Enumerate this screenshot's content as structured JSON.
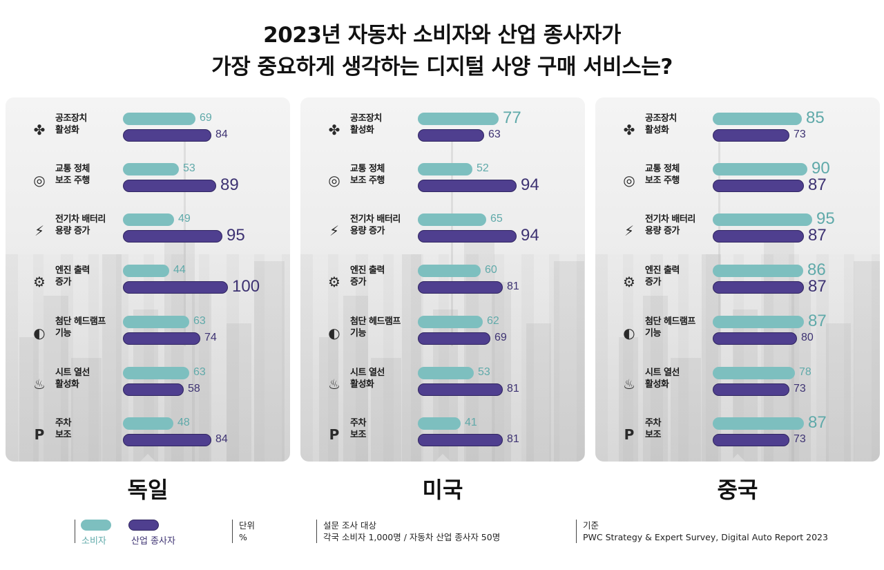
{
  "title": {
    "line1": "2023년 자동차 소비자와 산업 종사자가",
    "line2": "가장 중요하게 생각하는 디지털 사양 구매 서비스는?"
  },
  "colors": {
    "consumer": "#7dbfbf",
    "industry": "#4f3f8f"
  },
  "icons": [
    "fan-icon",
    "steering-wheel-icon",
    "battery-charging-icon",
    "engine-icon",
    "headlamp-icon",
    "heated-seat-icon",
    "parking-icon"
  ],
  "chart_data": {
    "type": "bar",
    "orientation": "horizontal",
    "categories": [
      [
        "공조장치",
        "활성화"
      ],
      [
        "교통 정체",
        "보조 주행"
      ],
      [
        "전기차 배터리",
        "용량 증가"
      ],
      [
        "엔진 출력",
        "증가"
      ],
      [
        "첨단 헤드램프",
        "기능"
      ],
      [
        "시트 열선",
        "활성화"
      ],
      [
        "주차",
        "보조"
      ]
    ],
    "unit": "%",
    "groups": [
      {
        "name": "독일",
        "series": [
          {
            "name": "소비자",
            "values": [
              69,
              53,
              49,
              44,
              63,
              63,
              48
            ]
          },
          {
            "name": "산업 종사자",
            "values": [
              84,
              89,
              95,
              100,
              74,
              58,
              84
            ]
          }
        ]
      },
      {
        "name": "미국",
        "series": [
          {
            "name": "소비자",
            "values": [
              77,
              52,
              65,
              60,
              62,
              53,
              41
            ]
          },
          {
            "name": "산업 종사자",
            "values": [
              63,
              94,
              94,
              81,
              69,
              81,
              81
            ]
          }
        ]
      },
      {
        "name": "중국",
        "series": [
          {
            "name": "소비자",
            "values": [
              85,
              90,
              95,
              86,
              87,
              78,
              87
            ]
          },
          {
            "name": "산업 종사자",
            "values": [
              73,
              87,
              87,
              87,
              80,
              73,
              73
            ]
          }
        ]
      }
    ],
    "highlight_max": true,
    "legend": "bottom-left"
  },
  "footer": {
    "legend_consumer": "소비자",
    "legend_industry": "산업 종사자",
    "unit_label": "단위",
    "unit_value": "%",
    "survey_label": "설문 조사 대상",
    "survey_value": "각국 소비자 1,000명 / 자동차 산업 종사자 50명",
    "source_label": "기준",
    "source_value": "PWC Strategy & Expert Survey, Digital Auto Report 2023"
  }
}
